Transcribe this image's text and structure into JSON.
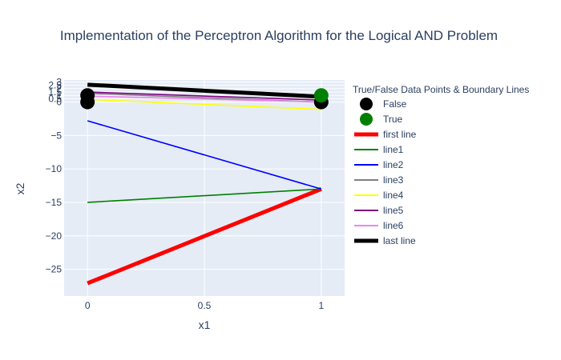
{
  "chart_data": {
    "type": "line",
    "title": "Implementation of the Perceptron Algorithm for the Logical AND Problem",
    "xlabel": "x1",
    "ylabel": "x2",
    "xlim": [
      -0.1,
      1.1
    ],
    "ylim": [
      -29,
      3.3
    ],
    "x_ticks": [
      {
        "value": 0,
        "label": "0"
      },
      {
        "value": 0.5,
        "label": "0.5"
      },
      {
        "value": 1,
        "label": "1"
      }
    ],
    "y_ticks": [
      {
        "value": 3,
        "label": "3"
      },
      {
        "value": 2.5,
        "label": "2.5"
      },
      {
        "value": 2,
        "label": "2"
      },
      {
        "value": 1.5,
        "label": "1.5"
      },
      {
        "value": 1,
        "label": "1"
      },
      {
        "value": 0.5,
        "label": "0.5"
      },
      {
        "value": 0,
        "label": "0"
      },
      {
        "value": -5,
        "label": "−5"
      },
      {
        "value": -10,
        "label": "−10"
      },
      {
        "value": -15,
        "label": "−15"
      },
      {
        "value": -20,
        "label": "−20"
      },
      {
        "value": -25,
        "label": "−25"
      }
    ],
    "grid": true,
    "legend_title": "True/False Data Points & Boundary Lines",
    "legend_position": "right",
    "points": [
      {
        "name": "False",
        "color": "#000000",
        "x": [
          0,
          0,
          1
        ],
        "y": [
          0,
          1,
          0
        ]
      },
      {
        "name": "True",
        "color": "#008000",
        "x": [
          1
        ],
        "y": [
          1
        ]
      }
    ],
    "series": [
      {
        "name": "first line",
        "color": "#ff0000",
        "width": "thick",
        "x": [
          0,
          1
        ],
        "y": [
          -27.1,
          -13
        ]
      },
      {
        "name": "line1",
        "color": "#008000",
        "width": "thin",
        "x": [
          0,
          1
        ],
        "y": [
          -15,
          -13
        ]
      },
      {
        "name": "line2",
        "color": "#0000ff",
        "width": "thin",
        "x": [
          0,
          1
        ],
        "y": [
          -2.8,
          -13
        ]
      },
      {
        "name": "line3",
        "color": "#808080",
        "width": "thin",
        "x": [
          0,
          1
        ],
        "y": [
          1.3,
          0
        ]
      },
      {
        "name": "line4",
        "color": "#ffff00",
        "width": "thin",
        "x": [
          0,
          1
        ],
        "y": [
          0.4,
          -1.1
        ]
      },
      {
        "name": "line5",
        "color": "#800080",
        "width": "thin",
        "x": [
          0,
          1
        ],
        "y": [
          1.5,
          0.3
        ]
      },
      {
        "name": "line6",
        "color": "#ee82ee",
        "width": "thin",
        "x": [
          0,
          1
        ],
        "y": [
          0.9,
          0
        ]
      },
      {
        "name": "last line",
        "color": "#000000",
        "width": "thick",
        "x": [
          0,
          1
        ],
        "y": [
          2.6,
          0.8
        ]
      }
    ]
  }
}
